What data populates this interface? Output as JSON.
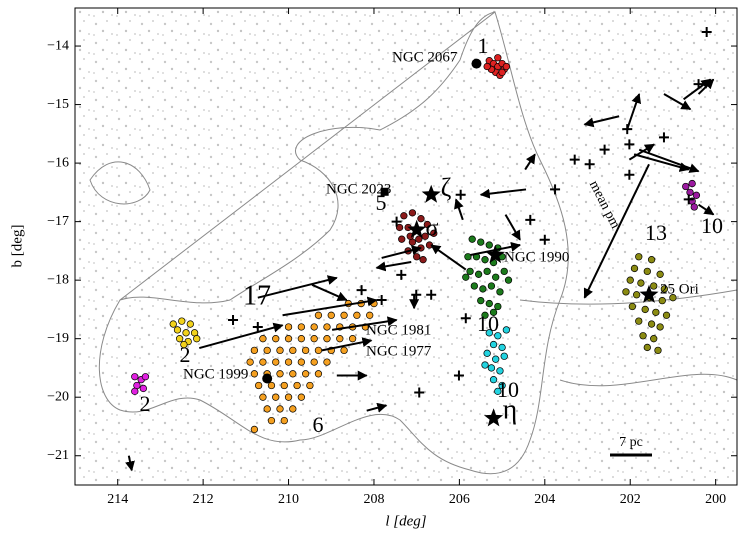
{
  "chart_data": {
    "type": "scatter",
    "x_label": "l [deg]",
    "y_label": "b [deg]",
    "xlim": [
      215,
      199.5
    ],
    "ylim": [
      -21.5,
      -13.35
    ],
    "xticks": [
      214,
      212,
      210,
      208,
      206,
      204,
      202,
      200
    ],
    "yticks": [
      {
        "value": -21,
        "label": "−21"
      },
      {
        "value": -20,
        "label": "−20"
      },
      {
        "value": -19,
        "label": "−19"
      },
      {
        "value": -18,
        "label": "−18"
      },
      {
        "value": -17,
        "label": "−17"
      },
      {
        "value": -16,
        "label": "−16"
      },
      {
        "value": -15,
        "label": "−15"
      },
      {
        "value": -14,
        "label": "−14"
      }
    ],
    "series": [
      {
        "label": "1",
        "color": "#dd2222",
        "x": [
          205.3,
          205.2,
          205.1,
          205.0,
          204.95,
          205.15,
          205.25,
          205.05,
          204.9,
          205.35,
          205.1,
          205.0
        ],
        "values": [
          -14.25,
          -14.3,
          -14.35,
          -14.3,
          -14.4,
          -14.45,
          -14.4,
          -14.5,
          -14.35,
          -14.35,
          -14.2,
          -14.45
        ]
      },
      {
        "label": "5",
        "color": "#8b1a1a",
        "x": [
          207.3,
          207.1,
          206.9,
          206.75,
          207.2,
          207.0,
          206.8,
          207.35,
          207.1,
          206.9,
          206.7,
          207.2,
          207.0,
          206.85,
          207.4,
          206.95,
          207.15,
          206.6
        ],
        "values": [
          -16.9,
          -16.85,
          -16.95,
          -17.05,
          -17.1,
          -17.15,
          -17.25,
          -17.3,
          -17.35,
          -17.45,
          -17.4,
          -17.5,
          -17.6,
          -17.65,
          -17.1,
          -17.3,
          -17.25,
          -17.2
        ]
      },
      {
        "label": "10",
        "color": "#1b7a1b",
        "x": [
          205.7,
          205.5,
          205.3,
          205.1,
          205.8,
          205.6,
          205.4,
          205.2,
          205.0,
          205.75,
          205.55,
          205.35,
          205.15,
          204.95,
          205.65,
          205.45,
          205.25,
          205.05,
          205.5,
          205.3,
          205.1,
          205.4,
          205.2,
          205.85,
          204.85
        ],
        "values": [
          -17.3,
          -17.35,
          -17.4,
          -17.45,
          -17.6,
          -17.6,
          -17.65,
          -17.7,
          -17.6,
          -17.85,
          -17.9,
          -17.85,
          -17.95,
          -17.85,
          -18.1,
          -18.15,
          -18.1,
          -18.2,
          -18.35,
          -18.4,
          -18.45,
          -18.6,
          -18.55,
          -17.95,
          -18.0
        ]
      },
      {
        "label": "10",
        "color": "#22d3e0",
        "x": [
          205.3,
          205.1,
          204.9,
          205.2,
          205.0,
          205.35,
          205.15,
          204.95,
          205.25,
          205.05,
          205.2,
          205.0,
          205.1,
          205.4
        ],
        "values": [
          -18.9,
          -18.95,
          -18.85,
          -19.1,
          -19.15,
          -19.25,
          -19.35,
          -19.3,
          -19.5,
          -19.55,
          -19.7,
          -19.8,
          -19.9,
          -19.45
        ]
      },
      {
        "label": "13",
        "color": "#8b8b12",
        "x": [
          201.8,
          201.5,
          201.9,
          201.6,
          201.3,
          202.0,
          201.75,
          201.45,
          201.2,
          202.1,
          201.85,
          201.55,
          201.25,
          201.0,
          201.95,
          201.65,
          201.4,
          201.15,
          201.8,
          201.5,
          201.3,
          201.7,
          201.45,
          201.6,
          201.35
        ],
        "values": [
          -17.6,
          -17.65,
          -17.8,
          -17.85,
          -17.9,
          -18.0,
          -18.05,
          -18.1,
          -18.15,
          -18.2,
          -18.25,
          -18.3,
          -18.35,
          -18.3,
          -18.45,
          -18.5,
          -18.55,
          -18.6,
          -18.7,
          -18.75,
          -18.8,
          -18.95,
          -19.0,
          -19.15,
          -19.2
        ]
      },
      {
        "label": "10",
        "color": "#9b1aa0",
        "x": [
          200.7,
          200.55,
          200.6,
          200.45,
          200.55,
          200.5
        ],
        "values": [
          -16.4,
          -16.35,
          -16.5,
          -16.55,
          -16.65,
          -16.75
        ]
      },
      {
        "label": "2",
        "color": "#f2d21b",
        "x": [
          212.7,
          212.5,
          212.3,
          212.6,
          212.4,
          212.2,
          212.55,
          212.35,
          212.15,
          212.45
        ],
        "values": [
          -18.75,
          -18.7,
          -18.75,
          -18.85,
          -18.9,
          -18.9,
          -19.0,
          -19.05,
          -19.0,
          -19.1
        ]
      },
      {
        "label": "2",
        "color": "#e020e0",
        "x": [
          213.6,
          213.45,
          213.35,
          213.55,
          213.4,
          213.6
        ],
        "values": [
          -19.65,
          -19.7,
          -19.65,
          -19.8,
          -19.85,
          -19.9
        ]
      },
      {
        "label": "6",
        "color": "#f5a020",
        "x": [
          208.6,
          208.3,
          208.0,
          209.3,
          209.0,
          208.7,
          208.4,
          208.1,
          210.0,
          209.7,
          209.4,
          209.1,
          208.8,
          208.5,
          208.2,
          210.6,
          210.3,
          210.0,
          209.7,
          209.4,
          209.1,
          208.8,
          208.5,
          210.8,
          210.5,
          210.2,
          209.9,
          209.6,
          209.3,
          209.0,
          208.7,
          210.9,
          210.6,
          210.3,
          210.0,
          209.7,
          209.4,
          209.1,
          210.8,
          210.5,
          210.2,
          209.9,
          209.6,
          209.3,
          210.7,
          210.4,
          210.1,
          209.8,
          209.5,
          210.6,
          210.3,
          210.0,
          209.7,
          210.5,
          210.2,
          209.9,
          210.4,
          210.1,
          210.8
        ],
        "values": [
          -18.4,
          -18.4,
          -18.4,
          -18.6,
          -18.6,
          -18.6,
          -18.6,
          -18.6,
          -18.8,
          -18.8,
          -18.8,
          -18.8,
          -18.8,
          -18.8,
          -18.8,
          -19.0,
          -19.0,
          -19.0,
          -19.0,
          -19.0,
          -19.0,
          -19.0,
          -19.0,
          -19.2,
          -19.2,
          -19.2,
          -19.2,
          -19.2,
          -19.2,
          -19.2,
          -19.2,
          -19.4,
          -19.4,
          -19.4,
          -19.4,
          -19.4,
          -19.4,
          -19.4,
          -19.6,
          -19.6,
          -19.6,
          -19.6,
          -19.6,
          -19.6,
          -19.8,
          -19.8,
          -19.8,
          -19.8,
          -19.8,
          -20.0,
          -20.0,
          -20.0,
          -20.0,
          -20.2,
          -20.2,
          -20.2,
          -20.4,
          -20.4,
          -20.55
        ]
      }
    ],
    "arrows": {
      "x": [
        202.26,
        202.07,
        201.21,
        200.75,
        200.4,
        202.02,
        201.79,
        201.91,
        201.56,
        200.4,
        204.44,
        204.46,
        205.85,
        205.74,
        207.13,
        207.82,
        209.45,
        210.72,
        210.14,
        212.09,
        208.98,
        209.22,
        208.87,
        208.17,
        213.74,
        207.06,
        204.92,
        205.92
      ],
      "y": [
        -15.2,
        -15.42,
        -14.82,
        -14.91,
        -14.82,
        -15.94,
        -15.77,
        -15.85,
        -16.02,
        -16.71,
        -16.45,
        -16.11,
        -17.82,
        -17.57,
        -17.69,
        -17.62,
        -18.08,
        -18.3,
        -18.6,
        -19.16,
        -18.85,
        -19.2,
        -19.63,
        -20.23,
        -21.0,
        -18.25,
        -16.88,
        -16.97
      ],
      "x2": [
        203.07,
        201.79,
        200.59,
        200.12,
        200.05,
        201.44,
        200.4,
        200.63,
        203.07,
        200.05,
        205.5,
        204.23,
        206.66,
        204.58,
        207.94,
        206.9,
        208.64,
        208.87,
        207.94,
        210.14,
        207.47,
        208.06,
        208.17,
        207.71,
        213.67,
        207.06,
        204.58,
        206.08
      ],
      "y2": [
        -15.34,
        -14.82,
        -15.08,
        -14.57,
        -14.57,
        -15.68,
        -16.14,
        -16.11,
        -18.3,
        -16.88,
        -16.54,
        -15.85,
        -17.4,
        -17.4,
        -17.79,
        -17.45,
        -18.34,
        -17.96,
        -18.34,
        -18.77,
        -18.68,
        -19.03,
        -19.63,
        -20.14,
        -21.25,
        -18.48,
        -17.31,
        -16.62
      ]
    },
    "crosses": {
      "x": [
        200.21,
        202.07,
        202.95,
        203.76,
        203.3,
        202.6,
        202.02,
        200.63,
        207.01,
        206.66,
        207.36,
        204.34,
        206.94,
        206.01,
        211.3,
        210.72,
        207.82,
        208.29,
        205.85,
        204.0,
        205.97,
        200.4,
        201.21,
        202.02,
        207.47
      ],
      "y": [
        -13.76,
        -15.42,
        -16.02,
        -16.45,
        -15.94,
        -15.77,
        -16.2,
        -16.62,
        -18.25,
        -18.25,
        -17.91,
        -16.97,
        -19.92,
        -19.63,
        -18.68,
        -18.8,
        -18.34,
        -18.17,
        -18.65,
        -17.31,
        -16.54,
        -14.65,
        -15.56,
        -15.68,
        -17.0
      ]
    },
    "objects": {
      "x": [
        205.6,
        206.66,
        207.0,
        205.16,
        201.56,
        205.2,
        210.5,
        207.75
      ],
      "y": [
        -14.3,
        -16.54,
        -17.14,
        -17.57,
        -18.25,
        -20.36,
        -19.68,
        -16.49
      ],
      "marker": [
        "circle",
        "star",
        "star",
        "star",
        "star",
        "star",
        "circle",
        "square"
      ]
    },
    "annotations": [
      "NGC 2067",
      "NGC 2023",
      "ζ",
      "σ",
      "NGC 1990",
      "25 Ori",
      "η",
      "NGC 1981",
      "NGC 1977",
      "NGC 1999",
      "17",
      "mean pm",
      "7 pc"
    ]
  }
}
